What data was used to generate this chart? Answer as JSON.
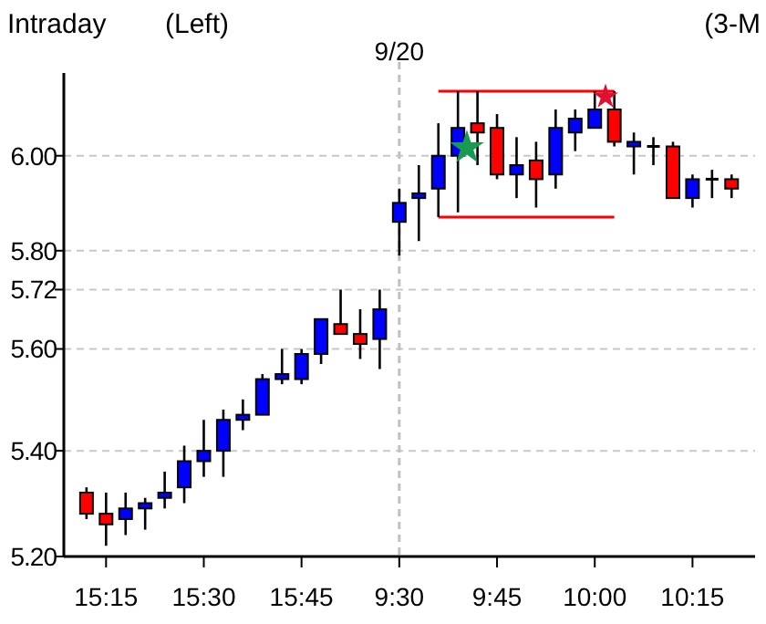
{
  "chart_data": {
    "type": "candlestick",
    "title": "(3-M",
    "annotations": [
      "Intraday",
      "(Left)"
    ],
    "categories": [
      null,
      "15:15",
      null,
      null,
      null,
      null,
      "15:30",
      null,
      null,
      null,
      null,
      "15:45",
      null,
      null,
      null,
      null,
      "9:30",
      null,
      null,
      null,
      null,
      "9:45",
      null,
      null,
      null,
      null,
      "10:00",
      null,
      null,
      null,
      null,
      "10:15",
      null,
      null
    ],
    "ohlc": [
      [
        5.32,
        5.33,
        5.27,
        5.28
      ],
      [
        5.28,
        5.32,
        5.22,
        5.26
      ],
      [
        5.27,
        5.32,
        5.24,
        5.29
      ],
      [
        5.29,
        5.31,
        5.25,
        5.3
      ],
      [
        5.31,
        5.36,
        5.29,
        5.32
      ],
      [
        5.33,
        5.41,
        5.3,
        5.38
      ],
      [
        5.38,
        5.46,
        5.35,
        5.4
      ],
      [
        5.4,
        5.48,
        5.35,
        5.46
      ],
      [
        5.46,
        5.5,
        5.44,
        5.47
      ],
      [
        5.47,
        5.55,
        5.47,
        5.54
      ],
      [
        5.54,
        5.6,
        5.53,
        5.55
      ],
      [
        5.54,
        5.6,
        5.53,
        5.59
      ],
      [
        5.59,
        5.66,
        5.57,
        5.66
      ],
      [
        5.65,
        5.72,
        5.63,
        5.63
      ],
      [
        5.63,
        5.68,
        5.58,
        5.61
      ],
      [
        5.62,
        5.72,
        5.56,
        5.68
      ],
      [
        5.86,
        5.93,
        5.79,
        5.9
      ],
      [
        5.91,
        5.98,
        5.82,
        5.92
      ],
      [
        5.93,
        6.07,
        5.87,
        6.0
      ],
      [
        6.0,
        6.14,
        5.88,
        6.06
      ],
      [
        6.07,
        6.14,
        5.98,
        6.05
      ],
      [
        6.06,
        6.09,
        5.95,
        5.96
      ],
      [
        5.96,
        6.04,
        5.91,
        5.98
      ],
      [
        5.99,
        6.03,
        5.89,
        5.95
      ],
      [
        5.96,
        6.1,
        5.93,
        6.06
      ],
      [
        6.05,
        6.1,
        6.01,
        6.08
      ],
      [
        6.06,
        6.14,
        6.06,
        6.1
      ],
      [
        6.1,
        6.14,
        6.02,
        6.03
      ],
      [
        6.02,
        6.05,
        5.96,
        6.03
      ],
      [
        6.02,
        6.04,
        5.98,
        6.02
      ],
      [
        6.02,
        6.03,
        5.91,
        5.91
      ],
      [
        5.91,
        5.96,
        5.89,
        5.95
      ],
      [
        5.95,
        5.97,
        5.91,
        5.95
      ],
      [
        5.95,
        5.96,
        5.91,
        5.93
      ]
    ],
    "colors": [
      "#ff0000",
      "#ff0000",
      "#0000ff",
      "#0000ff",
      "#0000ff",
      "#0000ff",
      "#0000ff",
      "#0000ff",
      "#0000ff",
      "#0000ff",
      "#0000ff",
      "#0000ff",
      "#0000ff",
      "#ff0000",
      "#ff0000",
      "#0000ff",
      "#0000ff",
      "#0000ff",
      "#0000ff",
      "#0000ff",
      "#ff0000",
      "#ff0000",
      "#0000ff",
      "#ff0000",
      "#0000ff",
      "#0000ff",
      "#0000ff",
      "#ff0000",
      "#0000ff",
      "#000000",
      "#ff0000",
      "#0000ff",
      "#000000",
      "#ff0000"
    ],
    "series": [
      {
        "type": "line",
        "color": "#ff0000",
        "values": [
          null,
          null,
          null,
          null,
          null,
          null,
          null,
          null,
          null,
          null,
          null,
          null,
          null,
          null,
          null,
          null,
          null,
          null,
          6.14,
          6.14,
          6.14,
          6.14,
          6.14,
          6.14,
          6.14,
          6.14,
          6.14,
          6.14,
          null,
          null,
          null,
          null,
          null,
          null
        ]
      },
      {
        "type": "line",
        "color": "#ff0000",
        "values": [
          null,
          null,
          null,
          null,
          null,
          null,
          null,
          null,
          null,
          null,
          null,
          null,
          null,
          null,
          null,
          null,
          null,
          null,
          5.87,
          5.87,
          5.87,
          5.87,
          5.87,
          5.87,
          5.87,
          5.87,
          5.87,
          5.87,
          null,
          null,
          null,
          null,
          null,
          null
        ]
      }
    ],
    "ref_lines": [
      {
        "axis": "x",
        "value": "9:30",
        "label": "9/20",
        "color": "#c0c0c0",
        "line_style": "dashed"
      }
    ],
    "log": true,
    "ylim": [
      5.2,
      6.18
    ],
    "yticks": [
      {
        "value": 5.2,
        "label": "5.20"
      },
      {
        "value": 5.4,
        "label": "5.40"
      },
      {
        "value": 5.6,
        "label": "5.60"
      },
      {
        "value": 5.72,
        "label": "5.72"
      },
      {
        "value": 5.8,
        "label": "5.80"
      },
      {
        "value": 6.0,
        "label": "6.00"
      }
    ],
    "grid": "y"
  }
}
